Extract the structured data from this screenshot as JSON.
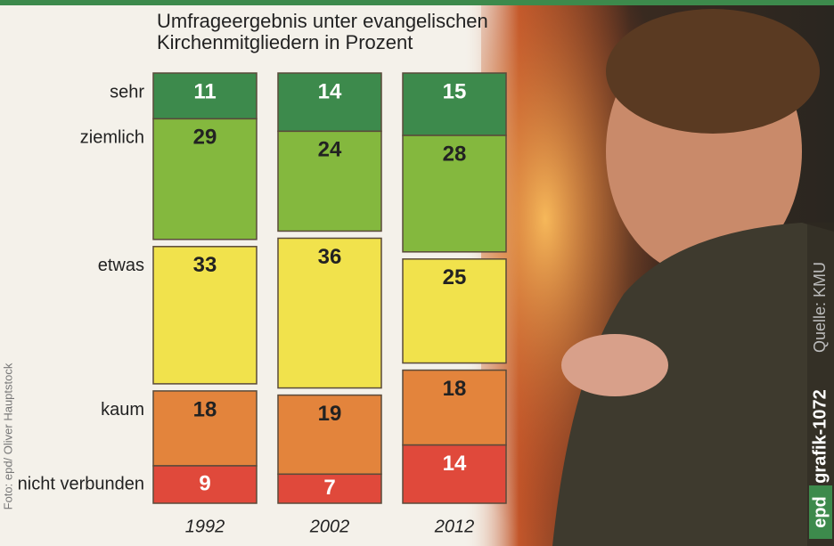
{
  "chart_data": {
    "type": "stacked-bar",
    "subtitle": "Umfrageergebnis unter evangelischen Kirchenmitgliedern in Prozent",
    "categories": [
      "1992",
      "2002",
      "2012"
    ],
    "series": [
      {
        "name": "sehr",
        "color": "#3d8a4c",
        "values": [
          11,
          14,
          15
        ]
      },
      {
        "name": "ziemlich",
        "color": "#84b83e",
        "values": [
          29,
          24,
          28
        ]
      },
      {
        "name": "etwas",
        "color": "#f1e24c",
        "values": [
          33,
          36,
          25
        ]
      },
      {
        "name": "kaum",
        "color": "#e3843c",
        "values": [
          18,
          19,
          18
        ]
      },
      {
        "name": "nicht verbunden",
        "color": "#e0493b",
        "values": [
          9,
          7,
          14
        ]
      }
    ],
    "photo_credit": "Foto: epd/ Oliver Hauptstock",
    "publisher": "epd",
    "graphic_id": "grafik-1072",
    "source": "Quelle: KMU"
  }
}
